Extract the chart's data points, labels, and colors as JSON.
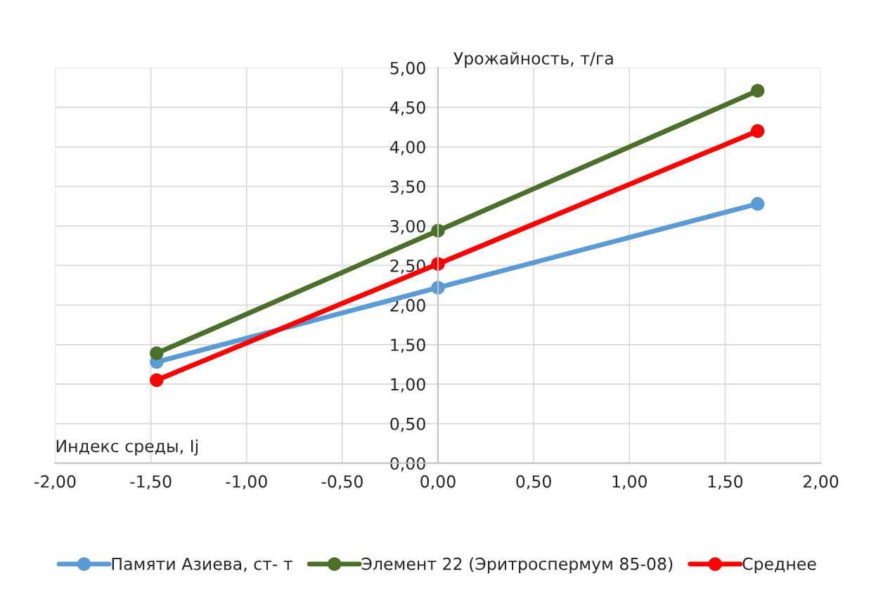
{
  "chart_data": {
    "type": "line",
    "xlabel": "Индекс среды, Ij",
    "ylabel": "Урожайность, т/га",
    "x": [
      -1.47,
      0,
      1.67
    ],
    "series": [
      {
        "name": "Памяти Азиева, ст- т",
        "color": "#5b9bd5",
        "values": [
          1.28,
          2.22,
          3.28
        ]
      },
      {
        "name": "Элемент 22 (Эритроспермум 85-08)",
        "color": "#4a7029",
        "values": [
          1.39,
          2.94,
          4.71
        ]
      },
      {
        "name": "Среднее",
        "color": "#ff0000",
        "values": [
          1.05,
          2.52,
          4.2
        ]
      }
    ],
    "xlim": [
      -2,
      2
    ],
    "xticks": [
      {
        "value": -2,
        "label": "-2,00"
      },
      {
        "value": -1.5,
        "label": "-1,50"
      },
      {
        "value": -1,
        "label": "-1,00"
      },
      {
        "value": -0.5,
        "label": "-0,50"
      },
      {
        "value": 0,
        "label": "0,00"
      },
      {
        "value": 0.5,
        "label": "0,50"
      },
      {
        "value": 1,
        "label": "1,00"
      },
      {
        "value": 1.5,
        "label": "1,50"
      },
      {
        "value": 2,
        "label": "2,00"
      }
    ],
    "ylim": [
      0,
      5
    ],
    "yticks": [
      {
        "value": 0,
        "label": "0,00"
      },
      {
        "value": 0.5,
        "label": "0,50"
      },
      {
        "value": 1,
        "label": "1,00"
      },
      {
        "value": 1.5,
        "label": "1,50"
      },
      {
        "value": 2,
        "label": "2,00"
      },
      {
        "value": 2.5,
        "label": "2,50"
      },
      {
        "value": 3,
        "label": "3,00"
      },
      {
        "value": 3.5,
        "label": "3,50"
      },
      {
        "value": 4,
        "label": "4,00"
      },
      {
        "value": 4.5,
        "label": "4,50"
      },
      {
        "value": 5,
        "label": "5,00"
      }
    ],
    "grid": true,
    "legend": "bottom",
    "marker": "circle",
    "line_style": "solid"
  }
}
